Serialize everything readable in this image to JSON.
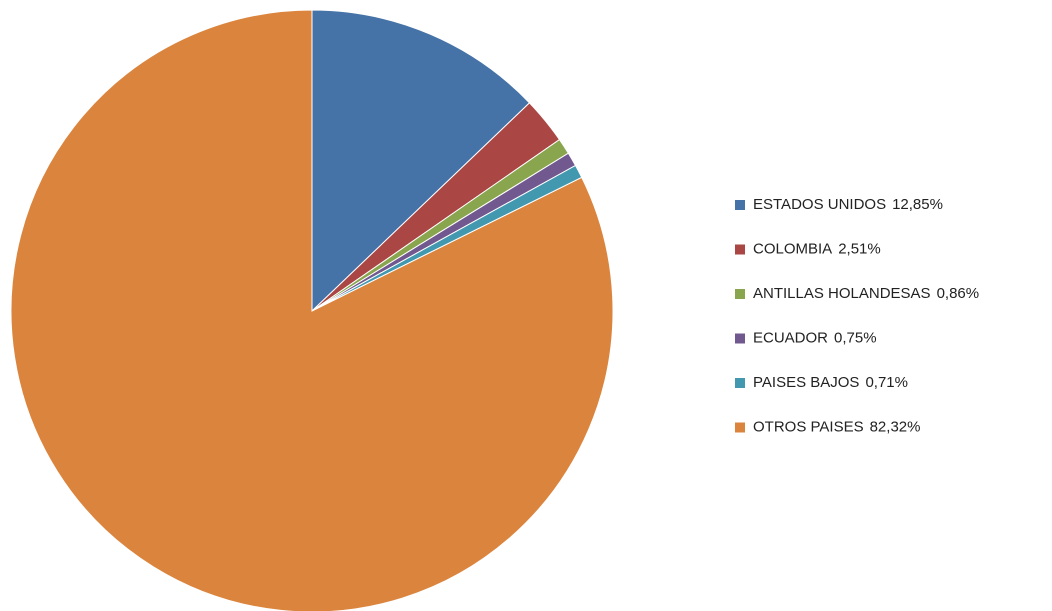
{
  "chart_data": {
    "type": "pie",
    "categories": [
      "ESTADOS UNIDOS",
      "COLOMBIA",
      "ANTILLAS HOLANDESAS",
      "ECUADOR",
      "PAISES BAJOS",
      "OTROS PAISES"
    ],
    "values": [
      12.85,
      2.51,
      0.86,
      0.75,
      0.71,
      82.32
    ],
    "value_labels": [
      "12,85%",
      "2,51%",
      "0,86%",
      "0,75%",
      "0,71%",
      "82,32%"
    ],
    "colors": [
      "#4572a7",
      "#aa4643",
      "#89a54e",
      "#71588f",
      "#4198af",
      "#db843d"
    ],
    "legend": "right"
  }
}
